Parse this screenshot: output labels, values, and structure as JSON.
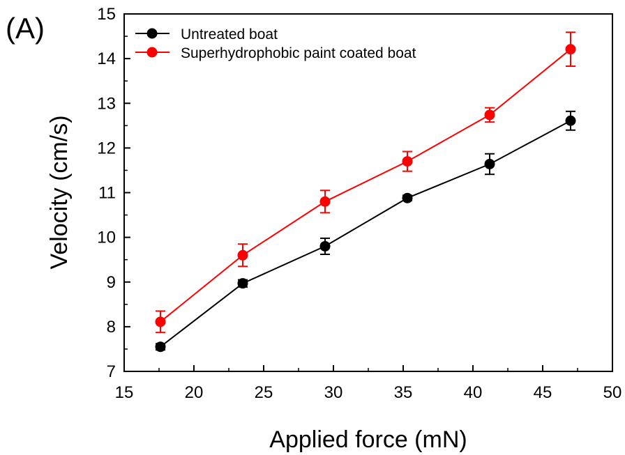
{
  "panel_label": "(A)",
  "chart_data": {
    "type": "line",
    "title": "",
    "xlabel": "Applied force (mN)",
    "ylabel": "Velocity (cm/s)",
    "xlim": [
      15,
      50
    ],
    "ylim": [
      7,
      15
    ],
    "x_ticks": [
      15,
      20,
      25,
      30,
      35,
      40,
      45,
      50
    ],
    "y_ticks": [
      7,
      8,
      9,
      10,
      11,
      12,
      13,
      14,
      15
    ],
    "grid": false,
    "legend_position": "top-left",
    "series": [
      {
        "name": "Untreated boat",
        "color": "#000000",
        "x": [
          17.6,
          23.5,
          29.4,
          35.3,
          41.2,
          47.0
        ],
        "y": [
          7.55,
          8.97,
          9.8,
          10.88,
          11.64,
          12.61
        ],
        "error": [
          0.07,
          0.08,
          0.18,
          0.06,
          0.23,
          0.21
        ]
      },
      {
        "name": "Superhydrophobic paint coated boat",
        "color": "#ff0000",
        "x": [
          17.6,
          23.5,
          29.4,
          35.3,
          41.2,
          47.0
        ],
        "y": [
          8.11,
          9.6,
          10.8,
          11.7,
          12.74,
          14.21
        ],
        "error": [
          0.24,
          0.25,
          0.25,
          0.22,
          0.16,
          0.38
        ]
      }
    ]
  }
}
